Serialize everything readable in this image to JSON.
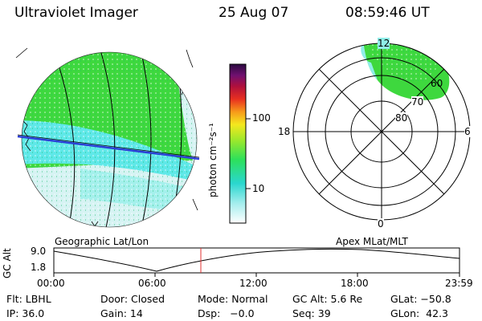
{
  "header": {
    "title": "Ultraviolet Imager",
    "date": "25 Aug 07",
    "time": "08:59:46 UT"
  },
  "colors": {
    "accent_line": "#2b3fd6",
    "time_marker": "#e03030",
    "aurora_green": "#3ed83e",
    "aurora_cyan": "#5fe8e8",
    "faint": "#d6f3f3"
  },
  "colorbar": {
    "unit_label": "photon cm⁻²s⁻¹",
    "ticks": [
      "100",
      "10"
    ]
  },
  "polar_plot": {
    "mlt_labels": {
      "top": "12",
      "left": "18",
      "right": "6",
      "bottom": "0"
    },
    "mlat_labels": [
      "60",
      "70",
      "80"
    ]
  },
  "labels": {
    "left_projection": "Geographic Lat/Lon",
    "right_projection": "Apex  MLat/MLT"
  },
  "altitude_chart": {
    "ylabel": "GC Alt",
    "y_ticks": [
      "9.0",
      "1.8"
    ],
    "x_ticks": [
      "00:00",
      "06:00",
      "12:00",
      "18:00",
      "23:59"
    ],
    "current_time": "08:59"
  },
  "info": {
    "row1": {
      "filter": "Flt: LBHL",
      "door": "Door: Closed",
      "mode": "Mode: Normal",
      "gc_alt": "GC Alt: 5.6 Re",
      "glat": "GLat: −50.8"
    },
    "row2": {
      "ip": "IP: 36.0",
      "gain": "Gain: 14",
      "dsp": "Dsp:   −0.0",
      "seq": "Seq: 39",
      "glon": "GLon:  42.3"
    }
  }
}
